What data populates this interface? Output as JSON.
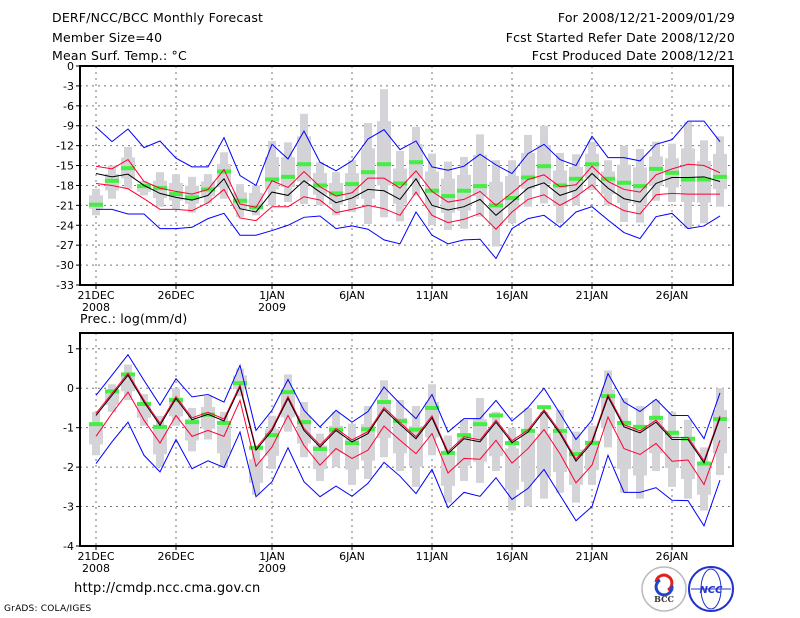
{
  "header": {
    "title": "DERF/NCC/BCC Monthly Forecast",
    "member_size": "Member Size=40",
    "variable": "Mean Surf. Temp.: °C",
    "period": "For 2008/12/21-2009/01/29",
    "started": "Fcst Started Refer Date 2008/12/20",
    "produced": "Fcst Produced Date 2008/12/21"
  },
  "footer": {
    "url": "http://cmdp.ncc.cma.gov.cn",
    "grads": "GrADS: COLA/IGES",
    "logo_bcc": "BCC",
    "logo_ncc": "NCC"
  },
  "colors": {
    "max_min": "#0000ff",
    "sd": "#ff0033",
    "mean": "#000000",
    "green": "#44ee44",
    "gray": "#d3d3d8"
  },
  "chart_data": [
    {
      "type": "line",
      "title": "Mean Surf. Temp.: °C",
      "ylim": [
        -33,
        0
      ],
      "yticks": [
        0,
        -3,
        -6,
        -9,
        -12,
        -15,
        -18,
        -21,
        -24,
        -27,
        -30,
        -33
      ],
      "xticks": [
        {
          "day": 0,
          "label": "21DEC",
          "sub": "2008"
        },
        {
          "day": 5,
          "label": "26DEC"
        },
        {
          "day": 11,
          "label": "1JAN",
          "sub": "2009"
        },
        {
          "day": 16,
          "label": "6JAN"
        },
        {
          "day": 21,
          "label": "11JAN"
        },
        {
          "day": 26,
          "label": "16JAN"
        },
        {
          "day": 31,
          "label": "21JAN"
        },
        {
          "day": 36,
          "label": "26JAN"
        }
      ],
      "grid": true,
      "n_days": 40,
      "series": [
        {
          "name": "max",
          "color": "#0000ff",
          "values": [
            -9.2,
            -11.4,
            -9.5,
            -12.3,
            -11.3,
            -13.9,
            -15.2,
            -15.2,
            -10.8,
            -16.5,
            -18,
            -11.8,
            -14,
            -9.8,
            -14.5,
            -15.8,
            -14.3,
            -11,
            -9.6,
            -12.6,
            -11.3,
            -15.2,
            -15.7,
            -15.1,
            -13.3,
            -14.9,
            -16.2,
            -13.2,
            -11.8,
            -14.1,
            -15,
            -10.6,
            -13.8,
            -13.8,
            -14.3,
            -11.8,
            -11.1,
            -8.3,
            -8.3,
            -11.4
          ]
        },
        {
          "name": "mean+sd",
          "color": "#ff0033",
          "values": [
            -15.1,
            -15.5,
            -14.1,
            -17.4,
            -18.4,
            -18.9,
            -19.3,
            -18.6,
            -15.6,
            -20.8,
            -21.3,
            -17.3,
            -18.3,
            -15.9,
            -18.2,
            -19.6,
            -19.1,
            -16.9,
            -16.9,
            -18.4,
            -15.8,
            -18.9,
            -20.5,
            -20.1,
            -18.9,
            -21,
            -19.1,
            -17.1,
            -16.4,
            -18.2,
            -17.9,
            -15.1,
            -17.4,
            -18.6,
            -19,
            -16.4,
            -15.5,
            -14.8,
            -15,
            -16.1
          ]
        },
        {
          "name": "mean",
          "color": "#000000",
          "values": [
            -16.2,
            -16.7,
            -16.3,
            -18,
            -19.2,
            -19.8,
            -20.2,
            -19.5,
            -17,
            -21.5,
            -22,
            -19,
            -19.5,
            -17.3,
            -19,
            -20.6,
            -19.9,
            -18.6,
            -18.8,
            -20.1,
            -17,
            -21,
            -21.7,
            -21.2,
            -20.1,
            -22.5,
            -20.5,
            -18.4,
            -17.6,
            -19.5,
            -18.7,
            -16.2,
            -18.4,
            -20,
            -20.5,
            -17.7,
            -16.8,
            -16.8,
            -16.7,
            -17.4
          ]
        },
        {
          "name": "mean-sd",
          "color": "#ff0033",
          "values": [
            -17.7,
            -18,
            -18.5,
            -20,
            -21.6,
            -21.6,
            -21.8,
            -20.6,
            -18.6,
            -22.9,
            -23.3,
            -21.2,
            -21.2,
            -19.7,
            -20.2,
            -22.1,
            -21.6,
            -21,
            -21.5,
            -22.5,
            -19,
            -22.5,
            -23.6,
            -23.1,
            -22.2,
            -24.6,
            -22,
            -20.1,
            -19.4,
            -21,
            -19.7,
            -17.9,
            -20.5,
            -21.8,
            -22.3,
            -19.4,
            -19.2,
            -19.3,
            -19.3,
            -19.3
          ]
        },
        {
          "name": "min",
          "color": "#0000ff",
          "values": [
            -21.6,
            -21.6,
            -22.3,
            -22.3,
            -24.5,
            -24.5,
            -24.3,
            -23,
            -22.2,
            -25.5,
            -25.5,
            -24.8,
            -24,
            -22.8,
            -22.6,
            -24.5,
            -24.1,
            -24.6,
            -26.2,
            -26.8,
            -22,
            -25.5,
            -26.8,
            -26.2,
            -26.1,
            -29,
            -24.5,
            -23,
            -22.5,
            -24.3,
            -22,
            -21.2,
            -23.2,
            -25.1,
            -26,
            -22.7,
            -22.2,
            -24.5,
            -24.1,
            -22.6
          ]
        }
      ],
      "markers": [
        -20.9,
        -17.3,
        -15.4,
        -18.1,
        -18.4,
        -19.3,
        -19.8,
        -18.6,
        -15.9,
        -20.3,
        -21.3,
        -17.1,
        -16.7,
        -14.8,
        -18,
        -19.2,
        -17.8,
        -16,
        -14.8,
        -17.7,
        -14.5,
        -18.8,
        -19.6,
        -18.8,
        -18.1,
        -21,
        -19.9,
        -16.8,
        -15.1,
        -18,
        -17,
        -14.8,
        -17,
        -17.6,
        -18.1,
        -15.5,
        -16.1,
        -17.1,
        -17.1,
        -16.7
      ],
      "range_low": [
        -22.5,
        -20,
        -18.5,
        -19.5,
        -21.2,
        -21.6,
        -22.1,
        -20.7,
        -20,
        -22.8,
        -22.5,
        -21,
        -20.5,
        -20.8,
        -21,
        -22.5,
        -22,
        -23.8,
        -22.8,
        -23.4,
        -19.5,
        -24,
        -24.7,
        -24.5,
        -22.7,
        -27.2,
        -23.7,
        -21.2,
        -20.7,
        -23.7,
        -21,
        -18.7,
        -21,
        -23.5,
        -23.6,
        -20.3,
        -20.5,
        -24.5,
        -23.7,
        -21.2
      ],
      "range_high": [
        -18.5,
        -15,
        -12.2,
        -17.3,
        -16,
        -16.3,
        -16.7,
        -16.3,
        -13,
        -17.8,
        -18,
        -11.3,
        -11.5,
        -7.2,
        -14.5,
        -16,
        -14.2,
        -8.6,
        -3.5,
        -12.8,
        -9.2,
        -13.2,
        -14.4,
        -13.7,
        -10.3,
        -14.2,
        -14.2,
        -10.4,
        -9,
        -13.1,
        -13.3,
        -11.4,
        -14.2,
        -12,
        -12.5,
        -11.4,
        -11.7,
        -8.4,
        -11.2,
        -10.6
      ]
    },
    {
      "type": "line",
      "title": "Prec.: log(mm/d)",
      "ylim": [
        -4,
        1.4
      ],
      "yticks": [
        1,
        0,
        -1,
        -2,
        -3,
        -4
      ],
      "xticks": [
        {
          "day": 0,
          "label": "21DEC",
          "sub": "2008"
        },
        {
          "day": 5,
          "label": "26DEC"
        },
        {
          "day": 11,
          "label": "1JAN",
          "sub": "2009"
        },
        {
          "day": 16,
          "label": "6JAN"
        },
        {
          "day": 21,
          "label": "11JAN"
        },
        {
          "day": 26,
          "label": "16JAN"
        },
        {
          "day": 31,
          "label": "21JAN"
        },
        {
          "day": 36,
          "label": "26JAN"
        }
      ],
      "grid": true,
      "n_days": 40,
      "series": [
        {
          "name": "max",
          "color": "#0000ff",
          "values": [
            -0.18,
            0.33,
            0.85,
            0.2,
            -0.43,
            0.24,
            -0.22,
            -0.16,
            -0.35,
            0.58,
            -1.07,
            -0.56,
            0.22,
            -0.56,
            -0.98,
            -0.56,
            -0.86,
            -0.59,
            0.03,
            -0.39,
            -0.77,
            -0.16,
            -1.11,
            -0.77,
            -0.77,
            -0.31,
            -0.83,
            -0.49,
            0.0,
            -0.64,
            -1.3,
            -0.81,
            0.37,
            -0.35,
            -0.59,
            -0.28,
            -0.69,
            -0.69,
            -1.28,
            -0.12
          ]
        },
        {
          "name": "mean+sd",
          "color": "#ff0033",
          "values": [
            -0.64,
            -0.13,
            0.38,
            -0.3,
            -0.89,
            -0.21,
            -0.75,
            -0.61,
            -0.78,
            0.08,
            -1.52,
            -1.02,
            -0.21,
            -1.02,
            -1.44,
            -1.02,
            -1.31,
            -1.1,
            -0.49,
            -0.87,
            -1.23,
            -0.7,
            -1.61,
            -1.23,
            -1.31,
            -0.81,
            -1.33,
            -1.06,
            -0.54,
            -1.1,
            -1.8,
            -1.33,
            -0.17,
            -0.93,
            -1.08,
            -0.81,
            -1.25,
            -1.25,
            -1.84,
            -0.7
          ]
        },
        {
          "name": "mean",
          "color": "#000000",
          "values": [
            -0.69,
            -0.18,
            0.33,
            -0.35,
            -0.94,
            -0.26,
            -0.8,
            -0.66,
            -0.83,
            0.03,
            -1.57,
            -1.07,
            -0.26,
            -1.07,
            -1.49,
            -1.07,
            -1.36,
            -1.15,
            -0.54,
            -0.92,
            -1.28,
            -0.75,
            -1.66,
            -1.28,
            -1.36,
            -0.86,
            -1.38,
            -1.11,
            -0.59,
            -1.15,
            -1.85,
            -1.38,
            -0.22,
            -0.98,
            -1.13,
            -0.86,
            -1.3,
            -1.3,
            -1.89,
            -0.75
          ]
        },
        {
          "name": "mean-sd",
          "color": "#ff0033",
          "values": [
            -1.22,
            -0.64,
            -0.1,
            -0.81,
            -1.39,
            -0.69,
            -1.22,
            -1.07,
            -1.22,
            -0.31,
            -1.98,
            -1.49,
            -0.69,
            -1.45,
            -1.95,
            -1.53,
            -1.78,
            -1.57,
            -0.96,
            -1.32,
            -1.66,
            -1.15,
            -2.15,
            -1.78,
            -1.8,
            -1.32,
            -1.9,
            -1.53,
            -1.05,
            -1.66,
            -2.4,
            -1.95,
            -0.73,
            -1.53,
            -1.68,
            -1.4,
            -1.85,
            -1.82,
            -2.44,
            -1.32
          ]
        },
        {
          "name": "min",
          "color": "#0000ff",
          "values": [
            -1.91,
            -1.36,
            -0.86,
            -1.7,
            -2.12,
            -1.3,
            -2.04,
            -1.84,
            -2.01,
            -1.11,
            -2.75,
            -2.37,
            -1.51,
            -2.37,
            -2.75,
            -2.48,
            -2.74,
            -2.41,
            -1.88,
            -2.23,
            -2.67,
            -2.06,
            -3.03,
            -2.64,
            -2.74,
            -2.27,
            -2.82,
            -2.54,
            -2.06,
            -2.71,
            -3.36,
            -3.0,
            -1.7,
            -2.64,
            -2.64,
            -2.52,
            -2.84,
            -2.85,
            -3.49,
            -2.33
          ]
        }
      ],
      "markers": [
        -0.91,
        -0.08,
        0.35,
        -0.4,
        -0.98,
        -0.3,
        -0.86,
        -0.67,
        -0.88,
        0.13,
        -1.51,
        -1.19,
        -0.1,
        -0.86,
        -1.54,
        -1.05,
        -1.39,
        -1.04,
        -0.35,
        -0.83,
        -1.05,
        -0.5,
        -1.64,
        -1.19,
        -0.91,
        -0.69,
        -1.39,
        -1.08,
        -0.48,
        -1.08,
        -1.67,
        -1.39,
        -0.2,
        -0.88,
        -0.98,
        -0.75,
        -1.13,
        -1.28,
        -1.91,
        -0.78
      ],
      "range_low": [
        -1.7,
        -0.6,
        -0.3,
        -0.95,
        -2.0,
        -0.95,
        -1.6,
        -1.3,
        -2.0,
        -0.2,
        -2.7,
        -2.05,
        -1.1,
        -1.75,
        -2.35,
        -2.0,
        -2.45,
        -2.3,
        -1.75,
        -2.1,
        -2.5,
        -1.7,
        -2.9,
        -2.35,
        -2.4,
        -2.1,
        -3.1,
        -3.0,
        -2.8,
        -2.65,
        -2.9,
        -2.45,
        -1.5,
        -2.65,
        -2.8,
        -2.1,
        -2.5,
        -2.8,
        -3.1,
        -2.2
      ],
      "range_high": [
        -0.6,
        0.1,
        0.6,
        -0.15,
        -0.7,
        0.0,
        -0.5,
        -0.2,
        -0.6,
        0.5,
        -1.5,
        -0.7,
        0.35,
        -0.35,
        -1.15,
        -0.6,
        -0.9,
        -0.45,
        0.2,
        -0.3,
        -0.45,
        0.1,
        -1.2,
        -0.8,
        -0.25,
        -0.6,
        -1.0,
        -0.5,
        -0.6,
        -0.55,
        -1.1,
        -0.95,
        0.45,
        -0.25,
        -0.45,
        -0.3,
        -0.6,
        -0.8,
        -1.5,
        0.0
      ]
    }
  ]
}
